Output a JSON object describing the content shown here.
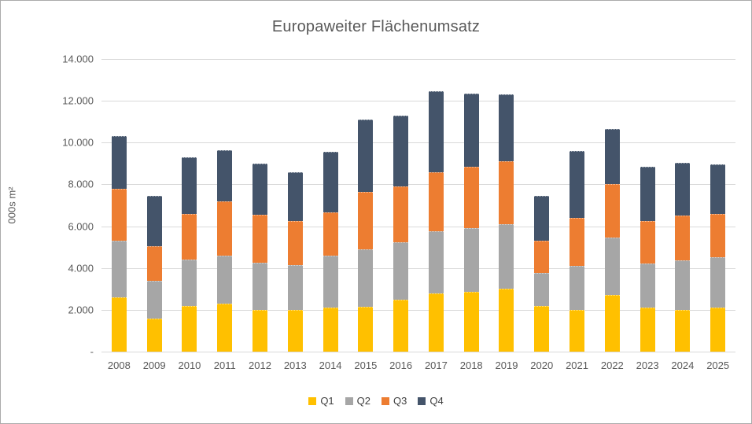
{
  "chart_data": {
    "type": "bar",
    "stacked": true,
    "title": "Europaweiter Flächenumsatz",
    "xlabel": "",
    "ylabel": "000s m²",
    "ylim": [
      0,
      14000
    ],
    "ytick_interval": 2000,
    "yticks": [
      {
        "value": 0,
        "label": "-"
      },
      {
        "value": 2000,
        "label": "2.000"
      },
      {
        "value": 4000,
        "label": "4.000"
      },
      {
        "value": 6000,
        "label": "6.000"
      },
      {
        "value": 8000,
        "label": "8.000"
      },
      {
        "value": 10000,
        "label": "10.000"
      },
      {
        "value": 12000,
        "label": "12.000"
      },
      {
        "value": 14000,
        "label": "14.000"
      }
    ],
    "grid": true,
    "legend_position": "bottom",
    "categories": [
      "2008",
      "2009",
      "2010",
      "2011",
      "2012",
      "2013",
      "2014",
      "2015",
      "2016",
      "2017",
      "2018",
      "2019",
      "2020",
      "2021",
      "2022",
      "2023",
      "2024",
      "2025"
    ],
    "series": [
      {
        "name": "Q1",
        "color": "#FFC000",
        "values": [
          2600,
          1600,
          2200,
          2300,
          2000,
          2000,
          2100,
          2150,
          2500,
          2800,
          2850,
          3000,
          2200,
          2000,
          2700,
          2100,
          2000,
          2100
        ]
      },
      {
        "name": "Q2",
        "color": "#A6A6A6",
        "values": [
          2700,
          1800,
          2200,
          2300,
          2250,
          2150,
          2500,
          2750,
          2750,
          2950,
          3050,
          3100,
          1550,
          2100,
          2750,
          2100,
          2350,
          2400
        ]
      },
      {
        "name": "Q3",
        "color": "#ED7D31",
        "values": [
          2500,
          1650,
          2200,
          2600,
          2300,
          2100,
          2050,
          2750,
          2650,
          2850,
          2950,
          3000,
          1550,
          2300,
          2550,
          2050,
          2150,
          2100
        ]
      },
      {
        "name": "Q4",
        "color": "#44546A",
        "values": [
          2500,
          2400,
          2700,
          2450,
          2450,
          2350,
          2900,
          3450,
          3400,
          3850,
          3500,
          3200,
          2150,
          3200,
          2650,
          2600,
          2550,
          2350
        ]
      }
    ],
    "totals": [
      10300,
      7450,
      9300,
      9650,
      9000,
      8600,
      9550,
      11100,
      11300,
      12450,
      12350,
      12300,
      7450,
      9600,
      10650,
      8850,
      9050,
      8950
    ]
  },
  "colors": {
    "gridline": "#D9D9D9",
    "text": "#595959",
    "frame_border": "#ABABAB"
  }
}
